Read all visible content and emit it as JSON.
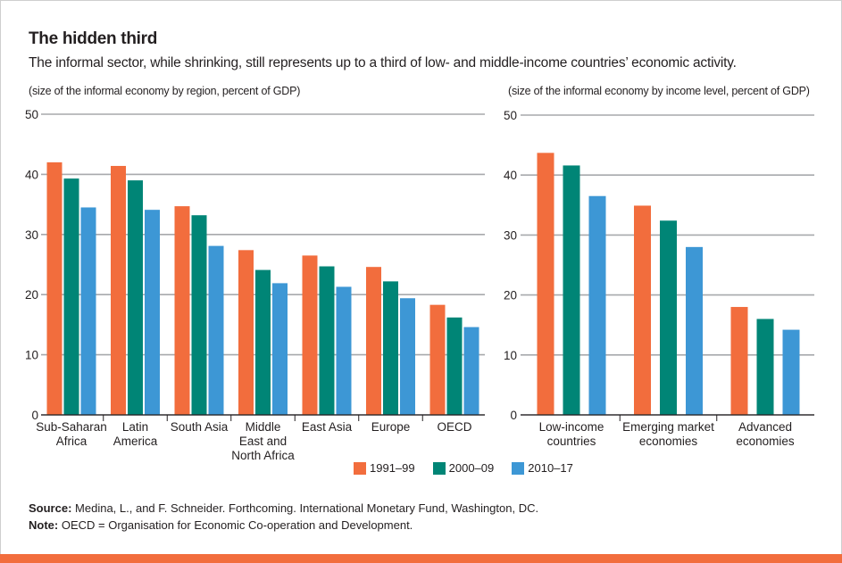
{
  "title": "The hidden third",
  "subtitle": "The informal sector, while shrinking, still represents up to a third of low- and middle-income countries’ economic activity.",
  "colors": {
    "s1": "#f26d3d",
    "s2": "#008576",
    "s3": "#3d97d5",
    "grid": "#a7a9ac",
    "accent_bar": "#f26d3d"
  },
  "legend": [
    {
      "label": "1991–99",
      "color": "#f26d3d"
    },
    {
      "label": "2000–09",
      "color": "#008576"
    },
    {
      "label": "2010–17",
      "color": "#3d97d5"
    }
  ],
  "chart_data": [
    {
      "type": "bar",
      "unit_label": "(size of the informal economy by region, percent of GDP)",
      "categories": [
        [
          "Sub-Saharan",
          "Africa"
        ],
        [
          "Latin",
          "America"
        ],
        [
          "South Asia"
        ],
        [
          "Middle",
          "East and",
          "North Africa"
        ],
        [
          "East Asia"
        ],
        [
          "Europe"
        ],
        [
          "OECD"
        ]
      ],
      "series": [
        {
          "name": "1991–99",
          "values": [
            42.0,
            41.4,
            34.7,
            27.4,
            26.5,
            24.6,
            18.3
          ]
        },
        {
          "name": "2000–09",
          "values": [
            39.3,
            39.0,
            33.2,
            24.1,
            24.7,
            22.2,
            16.2
          ]
        },
        {
          "name": "2010–17",
          "values": [
            34.5,
            34.1,
            28.1,
            21.9,
            21.3,
            19.4,
            14.6
          ]
        }
      ],
      "yticks": [
        0,
        10,
        20,
        30,
        40,
        50
      ],
      "ylim": [
        0,
        50
      ],
      "grid": true
    },
    {
      "type": "bar",
      "unit_label": "(size of the informal economy by income level, percent of GDP)",
      "categories": [
        [
          "Low-income",
          "countries"
        ],
        [
          "Emerging market",
          "economies"
        ],
        [
          "Advanced",
          "economies"
        ]
      ],
      "series": [
        {
          "name": "1991–99",
          "values": [
            43.7,
            34.9,
            18.0
          ]
        },
        {
          "name": "2000–09",
          "values": [
            41.6,
            32.4,
            16.0
          ]
        },
        {
          "name": "2010–17",
          "values": [
            36.5,
            28.0,
            14.2
          ]
        }
      ],
      "yticks": [
        0,
        10,
        20,
        30,
        40,
        50
      ],
      "ylim": [
        0,
        50
      ],
      "grid": true
    }
  ],
  "footer": {
    "source_label": "Source:",
    "source_text": "Medina, L., and F. Schneider. Forthcoming. International Monetary Fund, Washington, DC.",
    "note_label": "Note:",
    "note_text": "OECD = Organisation for Economic Co-operation and Development."
  }
}
